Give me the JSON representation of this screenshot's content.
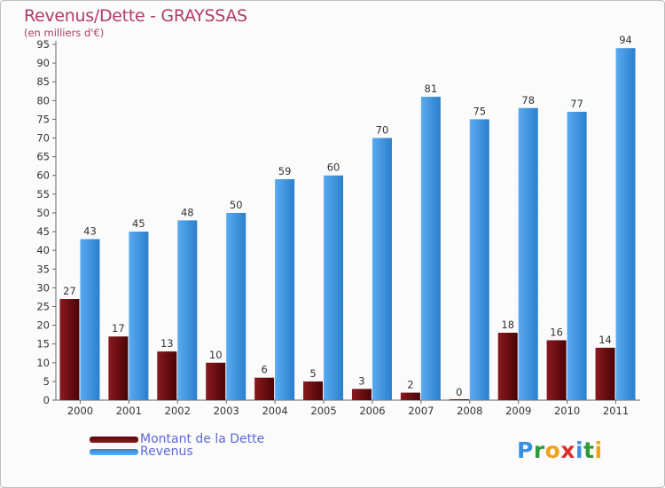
{
  "colors": {
    "dette": "#6b0a0e",
    "revenus": "#3d95e0",
    "title": "#b23a6a",
    "legend_text": "#5b6ad8"
  },
  "chart_data": {
    "type": "bar",
    "title": "Revenus/Dette - GRAYSSAS",
    "subtitle": "(en milliers d'€)",
    "xlabel": "",
    "ylabel": "",
    "ylim": [
      0,
      95
    ],
    "ytick_step": 5,
    "grid": false,
    "categories": [
      "2000",
      "2001",
      "2002",
      "2003",
      "2004",
      "2005",
      "2006",
      "2007",
      "2008",
      "2009",
      "2010",
      "2011"
    ],
    "series": [
      {
        "name": "Montant de la Dette",
        "values": [
          27,
          17,
          13,
          10,
          6,
          5,
          3,
          2,
          0,
          18,
          16,
          14
        ]
      },
      {
        "name": "Revenus",
        "values": [
          43,
          45,
          48,
          50,
          59,
          60,
          70,
          81,
          75,
          78,
          77,
          94
        ]
      }
    ],
    "legend_position": "bottom-left"
  },
  "logo": {
    "letters": [
      "P",
      "r",
      "o",
      "x",
      "i",
      "t",
      "i"
    ]
  }
}
